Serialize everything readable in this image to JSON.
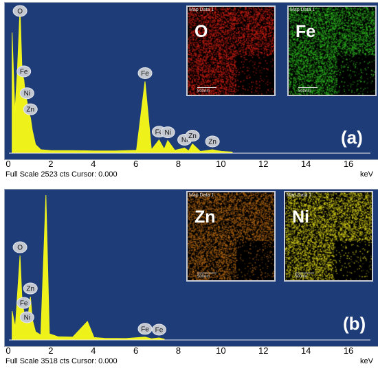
{
  "panels": [
    {
      "id": "a",
      "panel_label": "(a)",
      "status_left": "Full Scale 2523 cts Cursor: 0.000",
      "status_right": "keV",
      "maps": [
        {
          "caption": "Map Data 1",
          "element": "O",
          "scale": "500nm",
          "color": "#d11f14"
        },
        {
          "caption": "Map Data 1",
          "element": "Fe",
          "scale": "500nm",
          "color": "#2fbf22"
        }
      ],
      "peaks": [
        {
          "label": "Fe",
          "energy": 0.7
        },
        {
          "label": "O",
          "energy": 0.52
        },
        {
          "label": "Zn",
          "energy": 1.01
        },
        {
          "label": "Ni",
          "energy": 0.85
        },
        {
          "label": "Fe",
          "energy": 6.4
        },
        {
          "label": "Fe",
          "energy": 7.06
        },
        {
          "label": "Ni",
          "energy": 7.47
        },
        {
          "label": "Ni",
          "energy": 8.26
        },
        {
          "label": "Zn",
          "energy": 8.63
        },
        {
          "label": "Zn",
          "energy": 9.57
        }
      ]
    },
    {
      "id": "b",
      "panel_label": "(b)",
      "status_left": "Full Scale 3518 cts Cursor: 0.000",
      "status_right": "keV",
      "maps": [
        {
          "caption": "Map Data 1",
          "element": "Zn",
          "scale": "500nm",
          "color": "#b86a14"
        },
        {
          "caption": "Map Data 1",
          "element": "Ni",
          "scale": "500nm",
          "color": "#d8d21a"
        }
      ],
      "peaks": [
        {
          "label": "O",
          "energy": 0.52
        },
        {
          "label": "Fe",
          "energy": 0.7
        },
        {
          "label": "Zn",
          "energy": 1.01
        },
        {
          "label": "Ni",
          "energy": 0.85
        },
        {
          "label": "Fe",
          "energy": 6.4
        },
        {
          "label": "Fe",
          "energy": 7.06
        }
      ]
    }
  ],
  "chart_data": [
    {
      "type": "line",
      "xlabel": "keV",
      "xlim": [
        0,
        17
      ],
      "xticks": [
        0,
        2,
        4,
        6,
        8,
        10,
        12,
        14,
        16
      ],
      "full_scale_cts": 2523,
      "series": [
        {
          "x": [
            0.15,
            0.28,
            0.4,
            0.52,
            0.62,
            0.7,
            0.78,
            0.85,
            0.93,
            1.01,
            1.1,
            1.25,
            1.5,
            2.0,
            3.0,
            4.0,
            5.0,
            6.0,
            6.4,
            6.7,
            7.06,
            7.3,
            7.47,
            7.8,
            8.26,
            8.45,
            8.63,
            9.0,
            9.57,
            10.0,
            10.5
          ],
          "y": [
            2100,
            700,
            1450,
            2523,
            1380,
            1280,
            1000,
            900,
            700,
            620,
            400,
            150,
            60,
            45,
            45,
            40,
            40,
            50,
            1250,
            60,
            230,
            70,
            220,
            50,
            90,
            40,
            160,
            30,
            60,
            30,
            20
          ]
        }
      ]
    },
    {
      "type": "line",
      "xlabel": "keV",
      "xlim": [
        0,
        17
      ],
      "xticks": [
        0,
        2,
        4,
        6,
        8,
        10,
        12,
        14,
        16
      ],
      "full_scale_cts": 3518,
      "series": [
        {
          "x": [
            0.15,
            0.3,
            0.52,
            0.62,
            0.7,
            0.85,
            1.01,
            1.1,
            1.25,
            1.5,
            1.74,
            1.9,
            2.3,
            3.0,
            3.69,
            4.0,
            4.5,
            5.5,
            6.4,
            6.7,
            7.06,
            7.3
          ],
          "y": [
            700,
            300,
            2050,
            900,
            700,
            350,
            1050,
            500,
            200,
            120,
            3518,
            150,
            80,
            70,
            450,
            60,
            40,
            35,
            70,
            30,
            50,
            20
          ]
        }
      ]
    }
  ]
}
